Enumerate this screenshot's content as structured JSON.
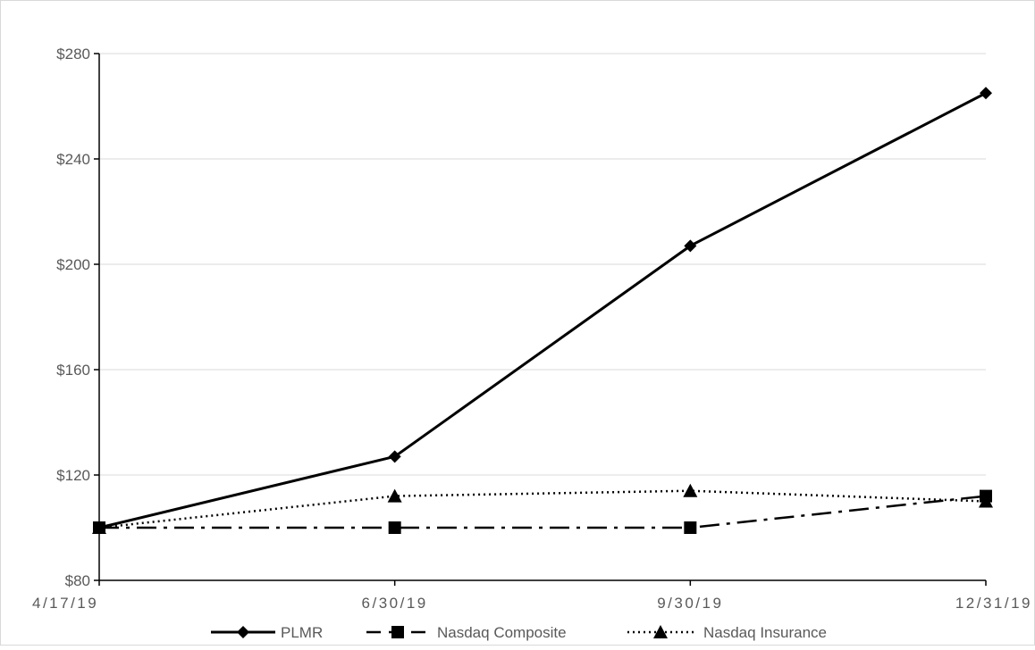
{
  "chart_data": {
    "type": "line",
    "title": "",
    "xlabel": "",
    "ylabel": "",
    "categories": [
      "4/17/19",
      "6/30/19",
      "9/30/19",
      "12/31/19"
    ],
    "ylim": [
      80,
      280
    ],
    "yticks": [
      80,
      120,
      160,
      200,
      240,
      280
    ],
    "ytick_labels": [
      "$80",
      "$120",
      "$160",
      "$200",
      "$240",
      "$280"
    ],
    "grid": "horizontal",
    "legend_position": "bottom",
    "series": [
      {
        "name": "PLMR",
        "values": [
          100,
          127,
          207,
          265
        ],
        "marker": "diamond",
        "line_style": "solid",
        "color": "#000000"
      },
      {
        "name": "Nasdaq Composite",
        "values": [
          100,
          100,
          100,
          112
        ],
        "marker": "square",
        "line_style": "dash-dot",
        "color": "#000000"
      },
      {
        "name": "Nasdaq Insurance",
        "values": [
          100,
          112,
          114,
          110
        ],
        "marker": "triangle",
        "line_style": "dotted",
        "color": "#000000"
      }
    ]
  }
}
